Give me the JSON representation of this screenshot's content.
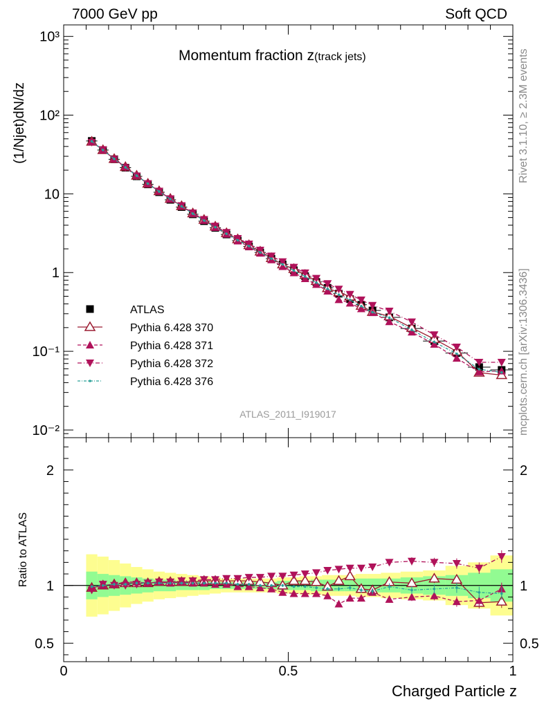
{
  "header": {
    "left": "7000 GeV pp",
    "right": "Soft QCD",
    "side_top": "Rivet 3.1.10, ≥ 2.3M events",
    "side_bottom": "mcplots.cern.ch [arXiv:1306.3436]"
  },
  "chart_data": {
    "type": "line",
    "title": "Momentum fraction z",
    "title_sub": "(track jets)",
    "xlabel": "Charged Particle z",
    "ylabel": "(1/Njet)dN/dz",
    "ratio_ylabel": "Ratio to ATLAS",
    "analysis_label": "ATLAS_2011_I919017",
    "xlim": [
      0,
      1
    ],
    "ylim": [
      0.008,
      1400
    ],
    "yscale": "log",
    "ratio_ylim": [
      0.34,
      2.28
    ],
    "x_ticks": [
      "0",
      "0.5",
      "1"
    ],
    "y_ticks": [
      "10⁻²",
      "10⁻¹",
      "1",
      "10",
      "10²",
      "10³"
    ],
    "ratio_ticks": [
      "0.5",
      "1",
      "2"
    ],
    "legend_position": "left-middle",
    "x": [
      0.0625,
      0.0875,
      0.1125,
      0.1375,
      0.1625,
      0.1875,
      0.2125,
      0.2375,
      0.2625,
      0.2875,
      0.3125,
      0.3375,
      0.3625,
      0.3875,
      0.4125,
      0.4375,
      0.4625,
      0.4875,
      0.5125,
      0.5375,
      0.5625,
      0.5875,
      0.6125,
      0.6375,
      0.6625,
      0.6875,
      0.725,
      0.775,
      0.825,
      0.875,
      0.925,
      0.975
    ],
    "series": [
      {
        "name": "ATLAS",
        "color": "#000000",
        "values": [
          47,
          36,
          27.5,
          21.5,
          16.7,
          13.2,
          10.5,
          8.4,
          6.8,
          5.5,
          4.5,
          3.7,
          3.05,
          2.55,
          2.15,
          1.8,
          1.5,
          1.27,
          1.07,
          0.9,
          0.76,
          0.64,
          0.54,
          0.46,
          0.39,
          0.33,
          0.27,
          0.195,
          0.135,
          0.095,
          0.063,
          0.058
        ]
      },
      {
        "name": "Pythia 6.428 370",
        "color": "#9b1b30",
        "ratio": [
          0.98,
          1.0,
          1.01,
          1.02,
          1.02,
          1.02,
          1.03,
          1.03,
          1.03,
          1.03,
          1.04,
          1.04,
          1.04,
          1.04,
          1.04,
          1.03,
          1.02,
          1.0,
          1.04,
          1.04,
          1.03,
          0.99,
          1.04,
          1.08,
          0.97,
          0.96,
          1.03,
          1.02,
          1.06,
          1.05,
          0.85,
          0.86
        ]
      },
      {
        "name": "Pythia 6.428 371",
        "color": "#b0125a",
        "ratio": [
          0.98,
          1.0,
          1.01,
          1.03,
          1.03,
          1.02,
          1.03,
          1.02,
          1.03,
          1.02,
          1.02,
          1.01,
          1.01,
          0.99,
          0.99,
          0.98,
          0.97,
          0.94,
          0.93,
          0.93,
          0.93,
          0.91,
          0.84,
          0.89,
          0.89,
          0.94,
          0.88,
          0.9,
          0.91,
          0.86,
          0.87,
          0.97
        ]
      },
      {
        "name": "Pythia 6.428 372",
        "color": "#b0125a",
        "ratio": [
          0.96,
          1.01,
          1.0,
          1.0,
          1.01,
          1.02,
          1.03,
          1.03,
          1.04,
          1.04,
          1.05,
          1.05,
          1.06,
          1.06,
          1.07,
          1.07,
          1.08,
          1.08,
          1.09,
          1.1,
          1.11,
          1.13,
          1.14,
          1.15,
          1.15,
          1.16,
          1.2,
          1.21,
          1.2,
          1.19,
          1.15,
          1.25
        ]
      },
      {
        "name": "Pythia 6.428 376",
        "color": "#2aa198",
        "ratio": [
          0.99,
          1.0,
          1.01,
          1.01,
          1.02,
          1.02,
          1.02,
          1.02,
          1.02,
          1.02,
          1.02,
          1.02,
          1.02,
          1.01,
          1.01,
          1.0,
          1.0,
          1.0,
          0.99,
          0.99,
          0.98,
          0.97,
          0.97,
          0.98,
          0.96,
          0.95,
          0.99,
          0.96,
          0.97,
          0.98,
          0.94,
          0.93
        ]
      }
    ],
    "band_yellow": [
      0.27,
      0.25,
      0.22,
      0.19,
      0.16,
      0.14,
      0.12,
      0.11,
      0.1,
      0.09,
      0.08,
      0.07,
      0.06,
      0.06,
      0.06,
      0.06,
      0.06,
      0.07,
      0.07,
      0.08,
      0.08,
      0.09,
      0.09,
      0.09,
      0.1,
      0.1,
      0.11,
      0.12,
      0.13,
      0.17,
      0.2,
      0.26
    ],
    "band_green": [
      0.12,
      0.1,
      0.09,
      0.08,
      0.07,
      0.06,
      0.05,
      0.05,
      0.04,
      0.04,
      0.04,
      0.03,
      0.03,
      0.03,
      0.03,
      0.03,
      0.03,
      0.04,
      0.04,
      0.04,
      0.05,
      0.05,
      0.05,
      0.05,
      0.06,
      0.06,
      0.06,
      0.07,
      0.08,
      0.09,
      0.11,
      0.14
    ]
  }
}
